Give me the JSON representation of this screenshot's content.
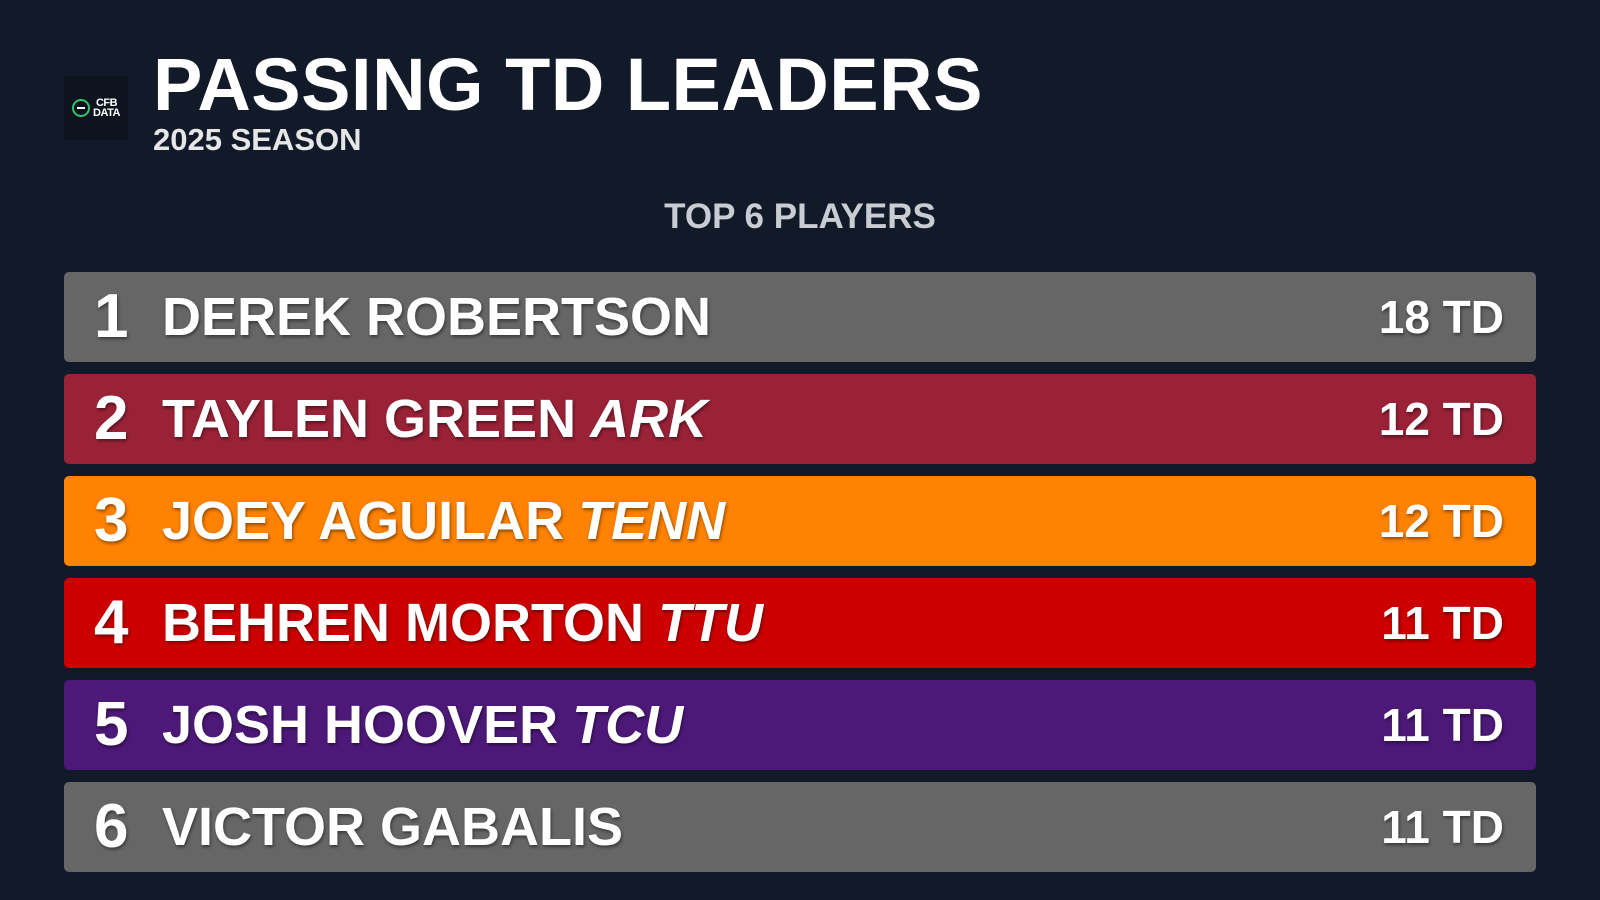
{
  "header": {
    "logo_text_line1": "CFB",
    "logo_text_line2": "DATA",
    "title": "PASSING TD LEADERS",
    "subtitle": "2025 SEASON"
  },
  "section_label": "TOP 6 PLAYERS",
  "colors": {
    "background": "#121a29",
    "row_default": "#666666",
    "ark": "#9a2237",
    "tenn": "#ff8200",
    "ttu": "#cc0000",
    "tcu": "#4d1979"
  },
  "players": [
    {
      "rank": "1",
      "name": "DEREK ROBERTSON",
      "team": "",
      "value": "18 TD",
      "color": "#666666"
    },
    {
      "rank": "2",
      "name": "TAYLEN GREEN",
      "team": "ARK",
      "value": "12 TD",
      "color": "#9a2237"
    },
    {
      "rank": "3",
      "name": "JOEY AGUILAR",
      "team": "TENN",
      "value": "12 TD",
      "color": "#ff8200"
    },
    {
      "rank": "4",
      "name": "BEHREN MORTON",
      "team": "TTU",
      "value": "11 TD",
      "color": "#cc0000"
    },
    {
      "rank": "5",
      "name": "JOSH HOOVER",
      "team": "TCU",
      "value": "11 TD",
      "color": "#4d1979"
    },
    {
      "rank": "6",
      "name": "VICTOR GABALIS",
      "team": "",
      "value": "11 TD",
      "color": "#666666"
    }
  ]
}
